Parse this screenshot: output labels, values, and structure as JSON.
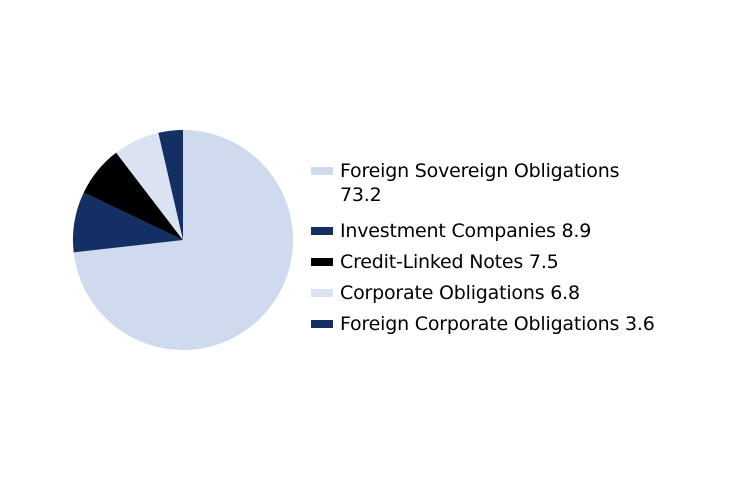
{
  "chart_data": {
    "type": "pie",
    "title": "",
    "legend_position": "right",
    "start_angle_deg": 0,
    "direction": "clockwise",
    "background_color": "#FFFFFF",
    "text_color": "#000000",
    "slices": [
      {
        "label": "Foreign Sovereign Obligations",
        "value": 73.2,
        "display_value": "73.2",
        "color": "#CFDAEE",
        "legend_two_line": true
      },
      {
        "label": "Investment Companies",
        "value": 8.9,
        "display_value": "8.9",
        "color": "#132F63",
        "legend_two_line": false
      },
      {
        "label": "Credit-Linked Notes",
        "value": 7.5,
        "display_value": "7.5",
        "color": "#000000",
        "legend_two_line": false
      },
      {
        "label": "Corporate Obligations",
        "value": 6.8,
        "display_value": "6.8",
        "color": "#DBE3F3",
        "legend_two_line": false
      },
      {
        "label": "Foreign Corporate Obligations",
        "value": 3.6,
        "display_value": "3.6",
        "color": "#132F63",
        "legend_two_line": false
      }
    ]
  }
}
